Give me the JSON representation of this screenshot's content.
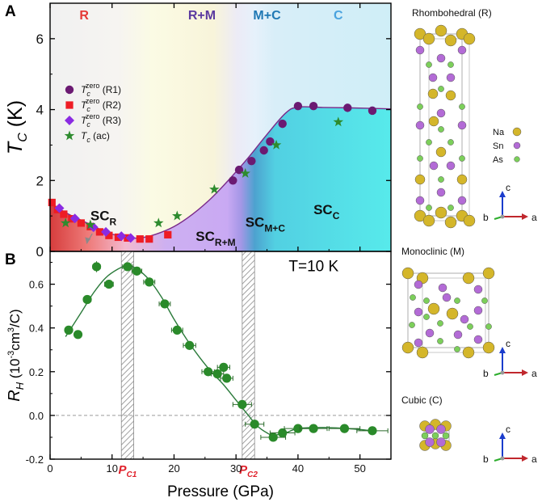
{
  "colors": {
    "r1": "#6b1a72",
    "r2": "#ee1c24",
    "r3": "#8a2be2",
    "ac": "#2e8b2e",
    "rh": "#2a8a2a",
    "curve_a": "#7a2a8a",
    "curve_b": "#2a7a3a",
    "region_R": "#e53935",
    "region_RM": "#5b3aa0",
    "region_MC": "#1f78b4",
    "region_C": "#4aa3df",
    "pc": "#e0202a",
    "na": "#d4b62a",
    "sn": "#b36bd6",
    "as": "#7ccf5a",
    "axis_c": "#1a3ccc",
    "axis_a": "#c0272d",
    "axis_b": "#2dad2d"
  },
  "chart_data": [
    {
      "id": "A",
      "panel_label": "A",
      "type": "scatter",
      "ylabel": "T_C (K)",
      "xlim": [
        0,
        55
      ],
      "ylim": [
        0,
        7
      ],
      "yticks": [
        0,
        2,
        4,
        6
      ],
      "region_labels": [
        {
          "text": "R",
          "x": 5.5
        },
        {
          "text": "R+M",
          "x": 24.5
        },
        {
          "text": "M+C",
          "x": 35
        },
        {
          "text": "C",
          "x": 46.5
        }
      ],
      "phase_labels": [
        {
          "main": "SC",
          "sub": "R",
          "x": 6.5,
          "y": 0.88
        },
        {
          "main": "SC",
          "sub": "R+M",
          "x": 23.5,
          "y": 0.3
        },
        {
          "main": "SC",
          "sub": "M+C",
          "x": 31.5,
          "y": 0.7
        },
        {
          "main": "SC",
          "sub": "C",
          "x": 42.5,
          "y": 1.05
        }
      ],
      "legend": [
        {
          "label": "T_c^zero (R1)",
          "main": "T",
          "sub": "c",
          "sup": "zero",
          "suffix": " (R1)",
          "marker": "circle",
          "color_key": "r1"
        },
        {
          "label": "T_c^zero (R2)",
          "main": "T",
          "sub": "c",
          "sup": "zero",
          "suffix": " (R2)",
          "marker": "square",
          "color_key": "r2"
        },
        {
          "label": "T_c^zero (R3)",
          "main": "T",
          "sub": "c",
          "sup": "zero",
          "suffix": " (R3)",
          "marker": "diamond",
          "color_key": "r3"
        },
        {
          "label": "T_c (ac)",
          "main": "T",
          "sub": "c",
          "sup": "",
          "suffix": " (ac)",
          "marker": "star",
          "color_key": "ac"
        }
      ],
      "series": [
        {
          "name": "R1",
          "marker": "circle",
          "color_key": "r1",
          "x": [
            29.5,
            30.5,
            32.5,
            34.5,
            35.5,
            37.5,
            40,
            42.5,
            48,
            52
          ],
          "y": [
            2.0,
            2.3,
            2.55,
            2.85,
            3.1,
            3.6,
            4.1,
            4.1,
            4.05,
            3.97
          ]
        },
        {
          "name": "R2",
          "marker": "square",
          "color_key": "r2",
          "x": [
            0.3,
            1.2,
            2.2,
            3.5,
            5.0,
            6.5,
            8.0,
            9.5,
            11.0,
            12.5,
            14.5,
            16.0,
            19.0
          ],
          "y": [
            1.38,
            1.18,
            1.05,
            0.92,
            0.8,
            0.7,
            0.55,
            0.45,
            0.4,
            0.38,
            0.35,
            0.35,
            0.47
          ]
        },
        {
          "name": "R3",
          "marker": "diamond",
          "color_key": "r3",
          "x": [
            1.5,
            4.0,
            7.0,
            9.0,
            11.5,
            13.0
          ],
          "y": [
            1.22,
            0.93,
            0.68,
            0.55,
            0.43,
            0.38
          ]
        },
        {
          "name": "ac",
          "marker": "star",
          "color_key": "ac",
          "x": [
            2.5,
            6.5,
            17.5,
            20.5,
            26.5,
            31.5,
            36.5,
            46.5
          ],
          "y": [
            0.8,
            0.75,
            0.8,
            1.0,
            1.75,
            2.2,
            3.0,
            3.65
          ]
        }
      ],
      "fit_curve": {
        "x": [
          0,
          3,
          6,
          9,
          12,
          14.5,
          17,
          20,
          23,
          26,
          29,
          32,
          35,
          38,
          40,
          44,
          48,
          55
        ],
        "y": [
          1.35,
          1.05,
          0.8,
          0.55,
          0.4,
          0.38,
          0.48,
          0.7,
          1.05,
          1.5,
          2.05,
          2.65,
          3.3,
          3.9,
          4.07,
          4.06,
          4.05,
          4.02
        ]
      }
    },
    {
      "id": "B",
      "panel_label": "B",
      "type": "scatter",
      "title": "T=10 K",
      "xlabel": "Pressure (GPa)",
      "ylabel": "R_H (10^-3 cm^3/C)",
      "xlim": [
        0,
        55
      ],
      "ylim": [
        -0.2,
        0.75
      ],
      "xticks": [
        0,
        10,
        20,
        30,
        40,
        50
      ],
      "yticks": [
        -0.2,
        0.0,
        0.2,
        0.4,
        0.6
      ],
      "ytick_labels": [
        "-0.2",
        "0.0",
        "0.2",
        "0.4",
        "0.6"
      ],
      "pc_bands": [
        {
          "main": "P",
          "sub": "C1",
          "from": 11.5,
          "to": 13.5
        },
        {
          "main": "P",
          "sub": "C2",
          "from": 31.0,
          "to": 33.0
        }
      ],
      "series": [
        {
          "name": "R_H",
          "marker": "circle",
          "color_key": "rh",
          "x": [
            3.0,
            4.5,
            6.0,
            7.5,
            9.5,
            12.5,
            14.0,
            16.0,
            18.5,
            20.5,
            22.5,
            25.5,
            27.0,
            28.0,
            28.5,
            31.0,
            33.0,
            36.0,
            37.5,
            40.0,
            42.5,
            47.5,
            52.0
          ],
          "y": [
            0.39,
            0.37,
            0.53,
            0.68,
            0.6,
            0.68,
            0.66,
            0.61,
            0.51,
            0.39,
            0.32,
            0.2,
            0.19,
            0.22,
            0.17,
            0.05,
            -0.04,
            -0.1,
            -0.08,
            -0.06,
            -0.06,
            -0.06,
            -0.07
          ],
          "xerr": [
            0.5,
            0.5,
            0.6,
            0.6,
            0.7,
            0.8,
            0.8,
            0.9,
            0.9,
            0.9,
            1.0,
            1.0,
            1.0,
            1.0,
            1.0,
            1.5,
            1.5,
            2.0,
            2.0,
            2.2,
            2.2,
            2.5,
            2.5
          ],
          "yerr": [
            0.015,
            0.015,
            0.02,
            0.025,
            0.02,
            0.02,
            0.02,
            0.02,
            0.02,
            0.02,
            0.02,
            0.02,
            0.02,
            0.02,
            0.02,
            0.02,
            0.02,
            0.02,
            0.02,
            0.02,
            0.02,
            0.02,
            0.02
          ]
        }
      ],
      "fit_curve": {
        "x": [
          2.5,
          5,
          7,
          9,
          11,
          12.5,
          14,
          16,
          18,
          20,
          22,
          24,
          26,
          28,
          30,
          32,
          33.5,
          35,
          36,
          38,
          40,
          44,
          48,
          52
        ],
        "y": [
          0.36,
          0.47,
          0.56,
          0.63,
          0.67,
          0.685,
          0.67,
          0.62,
          0.54,
          0.44,
          0.35,
          0.27,
          0.2,
          0.14,
          0.07,
          0.0,
          -0.05,
          -0.08,
          -0.09,
          -0.08,
          -0.06,
          -0.055,
          -0.06,
          -0.07
        ]
      }
    }
  ],
  "structures": [
    {
      "title": "Rhombohedral (R)",
      "legend": [
        {
          "label": "Na",
          "color_key": "na"
        },
        {
          "label": "Sn",
          "color_key": "sn"
        },
        {
          "label": "As",
          "color_key": "as"
        }
      ],
      "axes": {
        "c": "c",
        "b": "b",
        "a": "a"
      }
    },
    {
      "title": "Monoclinic (M)",
      "axes": {
        "c": "c",
        "b": "b",
        "a": "a"
      }
    },
    {
      "title": "Cubic (C)",
      "axes": {
        "c": "c",
        "b": "b",
        "a": "a"
      }
    }
  ]
}
